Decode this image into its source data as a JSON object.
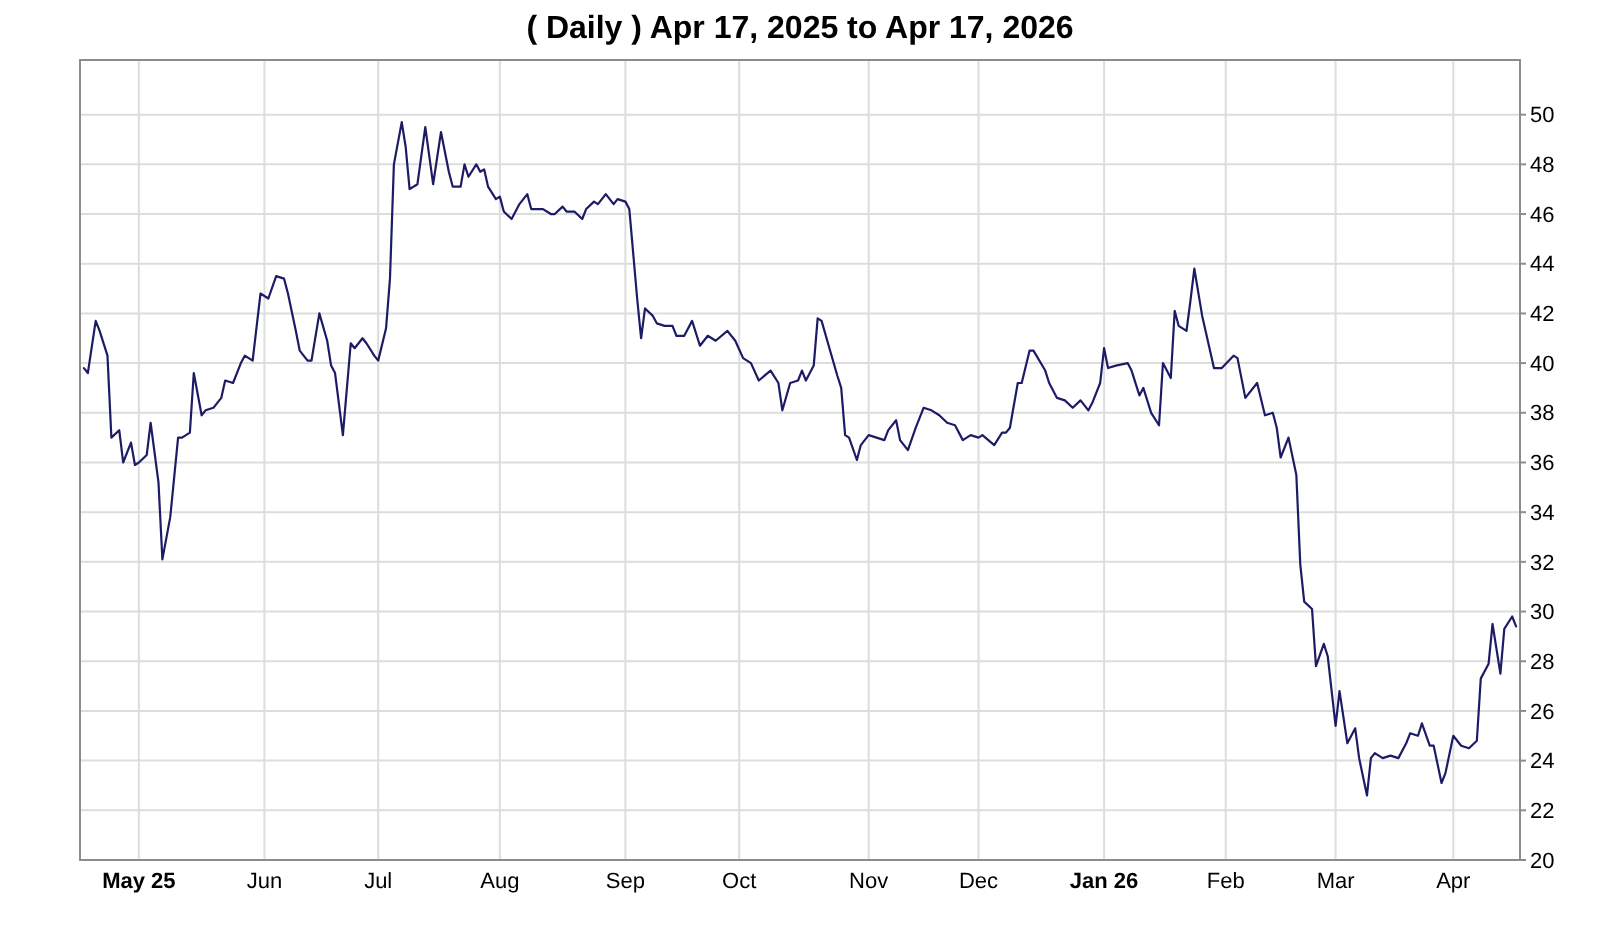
{
  "chart_data": {
    "type": "line",
    "title": "( Daily ) Apr 17, 2025 to Apr 17, 2026",
    "x": [
      "2025-04-17",
      "2025-04-18",
      "2025-04-20",
      "2025-04-21",
      "2025-04-23",
      "2025-04-24",
      "2025-04-26",
      "2025-04-27",
      "2025-04-29",
      "2025-04-30",
      "2025-05-01",
      "2025-05-03",
      "2025-05-04",
      "2025-05-06",
      "2025-05-07",
      "2025-05-09",
      "2025-05-11",
      "2025-05-12",
      "2025-05-14",
      "2025-05-15",
      "2025-05-17",
      "2025-05-18",
      "2025-05-20",
      "2025-05-22",
      "2025-05-23",
      "2025-05-25",
      "2025-05-27",
      "2025-05-28",
      "2025-05-30",
      "2025-06-01",
      "2025-06-02",
      "2025-06-03",
      "2025-06-05",
      "2025-06-07",
      "2025-06-08",
      "2025-06-10",
      "2025-06-11",
      "2025-06-13",
      "2025-06-14",
      "2025-06-16",
      "2025-06-18",
      "2025-06-19",
      "2025-06-20",
      "2025-06-22",
      "2025-06-24",
      "2025-06-25",
      "2025-06-27",
      "2025-06-28",
      "2025-06-30",
      "2025-07-01",
      "2025-07-03",
      "2025-07-04",
      "2025-07-05",
      "2025-07-07",
      "2025-07-08",
      "2025-07-09",
      "2025-07-11",
      "2025-07-13",
      "2025-07-15",
      "2025-07-17",
      "2025-07-19",
      "2025-07-20",
      "2025-07-22",
      "2025-07-23",
      "2025-07-24",
      "2025-07-26",
      "2025-07-27",
      "2025-07-28",
      "2025-07-29",
      "2025-07-31",
      "2025-08-01",
      "2025-08-02",
      "2025-08-04",
      "2025-08-06",
      "2025-08-08",
      "2025-08-09",
      "2025-08-11",
      "2025-08-12",
      "2025-08-14",
      "2025-08-15",
      "2025-08-17",
      "2025-08-18",
      "2025-08-20",
      "2025-08-22",
      "2025-08-23",
      "2025-08-25",
      "2025-08-26",
      "2025-08-28",
      "2025-08-30",
      "2025-08-31",
      "2025-09-02",
      "2025-09-03",
      "2025-09-05",
      "2025-09-06",
      "2025-09-07",
      "2025-09-09",
      "2025-09-10",
      "2025-09-12",
      "2025-09-14",
      "2025-09-15",
      "2025-09-17",
      "2025-09-19",
      "2025-09-21",
      "2025-09-23",
      "2025-09-25",
      "2025-09-28",
      "2025-09-30",
      "2025-10-02",
      "2025-10-04",
      "2025-10-06",
      "2025-10-09",
      "2025-10-11",
      "2025-10-12",
      "2025-10-14",
      "2025-10-16",
      "2025-10-17",
      "2025-10-18",
      "2025-10-20",
      "2025-10-21",
      "2025-10-22",
      "2025-10-24",
      "2025-10-26",
      "2025-10-27",
      "2025-10-28",
      "2025-10-29",
      "2025-10-31",
      "2025-11-01",
      "2025-11-03",
      "2025-11-05",
      "2025-11-07",
      "2025-11-08",
      "2025-11-10",
      "2025-11-11",
      "2025-11-13",
      "2025-11-15",
      "2025-11-17",
      "2025-11-19",
      "2025-11-21",
      "2025-11-23",
      "2025-11-25",
      "2025-11-27",
      "2025-11-29",
      "2025-12-01",
      "2025-12-02",
      "2025-12-05",
      "2025-12-07",
      "2025-12-08",
      "2025-12-09",
      "2025-12-11",
      "2025-12-12",
      "2025-12-14",
      "2025-12-15",
      "2025-12-18",
      "2025-12-19",
      "2025-12-21",
      "2025-12-23",
      "2025-12-25",
      "2025-12-27",
      "2025-12-29",
      "2025-12-30",
      "2026-01-01",
      "2026-01-02",
      "2026-01-03",
      "2026-01-05",
      "2026-01-08",
      "2026-01-09",
      "2026-01-11",
      "2026-01-12",
      "2026-01-14",
      "2026-01-16",
      "2026-01-17",
      "2026-01-19",
      "2026-01-20",
      "2026-01-21",
      "2026-01-23",
      "2026-01-24",
      "2026-01-25",
      "2026-01-27",
      "2026-01-28",
      "2026-01-30",
      "2026-02-01",
      "2026-02-04",
      "2026-02-05",
      "2026-02-07",
      "2026-02-10",
      "2026-02-12",
      "2026-02-14",
      "2026-02-15",
      "2026-02-16",
      "2026-02-18",
      "2026-02-20",
      "2026-02-21",
      "2026-02-22",
      "2026-02-24",
      "2026-02-25",
      "2026-02-27",
      "2026-02-28",
      "2026-03-02",
      "2026-03-03",
      "2026-03-05",
      "2026-03-07",
      "2026-03-08",
      "2026-03-10",
      "2026-03-11",
      "2026-03-12",
      "2026-03-14",
      "2026-03-16",
      "2026-03-18",
      "2026-03-20",
      "2026-03-21",
      "2026-03-23",
      "2026-03-24",
      "2026-03-26",
      "2026-03-27",
      "2026-03-29",
      "2026-03-30",
      "2026-04-01",
      "2026-04-03",
      "2026-04-05",
      "2026-04-07",
      "2026-04-08",
      "2026-04-10",
      "2026-04-11",
      "2026-04-13",
      "2026-04-14",
      "2026-04-16",
      "2026-04-17"
    ],
    "series": [
      {
        "color": "#1c1c66",
        "values": [
          39.8,
          39.6,
          41.7,
          41.3,
          40.3,
          37.0,
          37.3,
          36.0,
          36.8,
          35.9,
          36.0,
          36.3,
          37.6,
          35.2,
          32.1,
          33.8,
          37.0,
          37.0,
          37.2,
          39.6,
          37.9,
          38.1,
          38.2,
          38.6,
          39.3,
          39.2,
          40.0,
          40.3,
          40.1,
          42.8,
          42.7,
          42.6,
          43.5,
          43.4,
          42.8,
          41.3,
          40.5,
          40.1,
          40.1,
          42.0,
          40.9,
          39.9,
          39.6,
          37.1,
          40.8,
          40.6,
          41.0,
          40.8,
          40.3,
          40.1,
          41.4,
          43.4,
          48.0,
          49.7,
          48.7,
          47.0,
          47.2,
          49.5,
          47.2,
          49.3,
          47.7,
          47.1,
          47.1,
          48.0,
          47.5,
          48.0,
          47.7,
          47.8,
          47.1,
          46.6,
          46.7,
          46.1,
          45.8,
          46.4,
          46.8,
          46.2,
          46.2,
          46.2,
          46.0,
          46.0,
          46.3,
          46.1,
          46.1,
          45.8,
          46.2,
          46.5,
          46.4,
          46.8,
          46.4,
          46.6,
          46.5,
          46.2,
          42.6,
          41.0,
          42.2,
          41.9,
          41.6,
          41.5,
          41.5,
          41.1,
          41.1,
          41.7,
          40.7,
          41.1,
          40.9,
          41.3,
          40.9,
          40.2,
          40.0,
          39.3,
          39.7,
          39.2,
          38.1,
          39.2,
          39.3,
          39.7,
          39.3,
          39.9,
          41.8,
          41.7,
          40.6,
          39.5,
          39.0,
          37.1,
          37.0,
          36.1,
          36.7,
          37.1,
          37.0,
          36.9,
          37.3,
          37.7,
          36.9,
          36.5,
          37.4,
          38.2,
          38.1,
          37.9,
          37.6,
          37.5,
          36.9,
          37.1,
          37.0,
          37.1,
          36.7,
          37.2,
          37.2,
          37.4,
          39.2,
          39.2,
          40.5,
          40.5,
          39.7,
          39.2,
          38.6,
          38.5,
          38.2,
          38.5,
          38.1,
          38.4,
          39.2,
          40.6,
          39.8,
          39.9,
          40.0,
          39.7,
          38.7,
          39.0,
          38.0,
          37.5,
          40.0,
          39.4,
          42.1,
          41.5,
          41.3,
          42.5,
          43.8,
          41.9,
          41.2,
          39.8,
          39.8,
          40.3,
          40.2,
          38.6,
          39.2,
          37.9,
          38.0,
          37.4,
          36.2,
          37.0,
          35.5,
          31.9,
          30.4,
          30.1,
          27.8,
          28.7,
          28.2,
          25.4,
          26.8,
          24.7,
          25.3,
          24.1,
          22.6,
          24.1,
          24.3,
          24.1,
          24.2,
          24.1,
          24.7,
          25.1,
          25.0,
          25.5,
          24.6,
          24.6,
          23.1,
          23.5,
          25.0,
          24.6,
          24.5,
          24.8,
          27.3,
          27.9,
          29.5,
          27.5,
          29.3,
          29.8,
          29.4
        ]
      }
    ],
    "xlim": [
      "2025-04-16",
      "2026-04-18"
    ],
    "xticks": [
      {
        "value": "2025-05-01",
        "label": "May 25"
      },
      {
        "value": "2025-06-02",
        "label": "Jun"
      },
      {
        "value": "2025-07-01",
        "label": "Jul"
      },
      {
        "value": "2025-08-01",
        "label": "Aug"
      },
      {
        "value": "2025-09-02",
        "label": "Sep"
      },
      {
        "value": "2025-10-01",
        "label": "Oct"
      },
      {
        "value": "2025-11-03",
        "label": "Nov"
      },
      {
        "value": "2025-12-01",
        "label": "Dec"
      },
      {
        "value": "2026-01-02",
        "label": "Jan 26"
      },
      {
        "value": "2026-02-02",
        "label": "Feb"
      },
      {
        "value": "2026-03-02",
        "label": "Mar"
      },
      {
        "value": "2026-04-01",
        "label": "Apr"
      }
    ],
    "ylim": [
      20,
      52.2
    ],
    "yticks": [
      20,
      22,
      24,
      26,
      28,
      30,
      32,
      34,
      36,
      38,
      40,
      42,
      44,
      46,
      48,
      50
    ],
    "grid": true,
    "line_style": "solid"
  }
}
